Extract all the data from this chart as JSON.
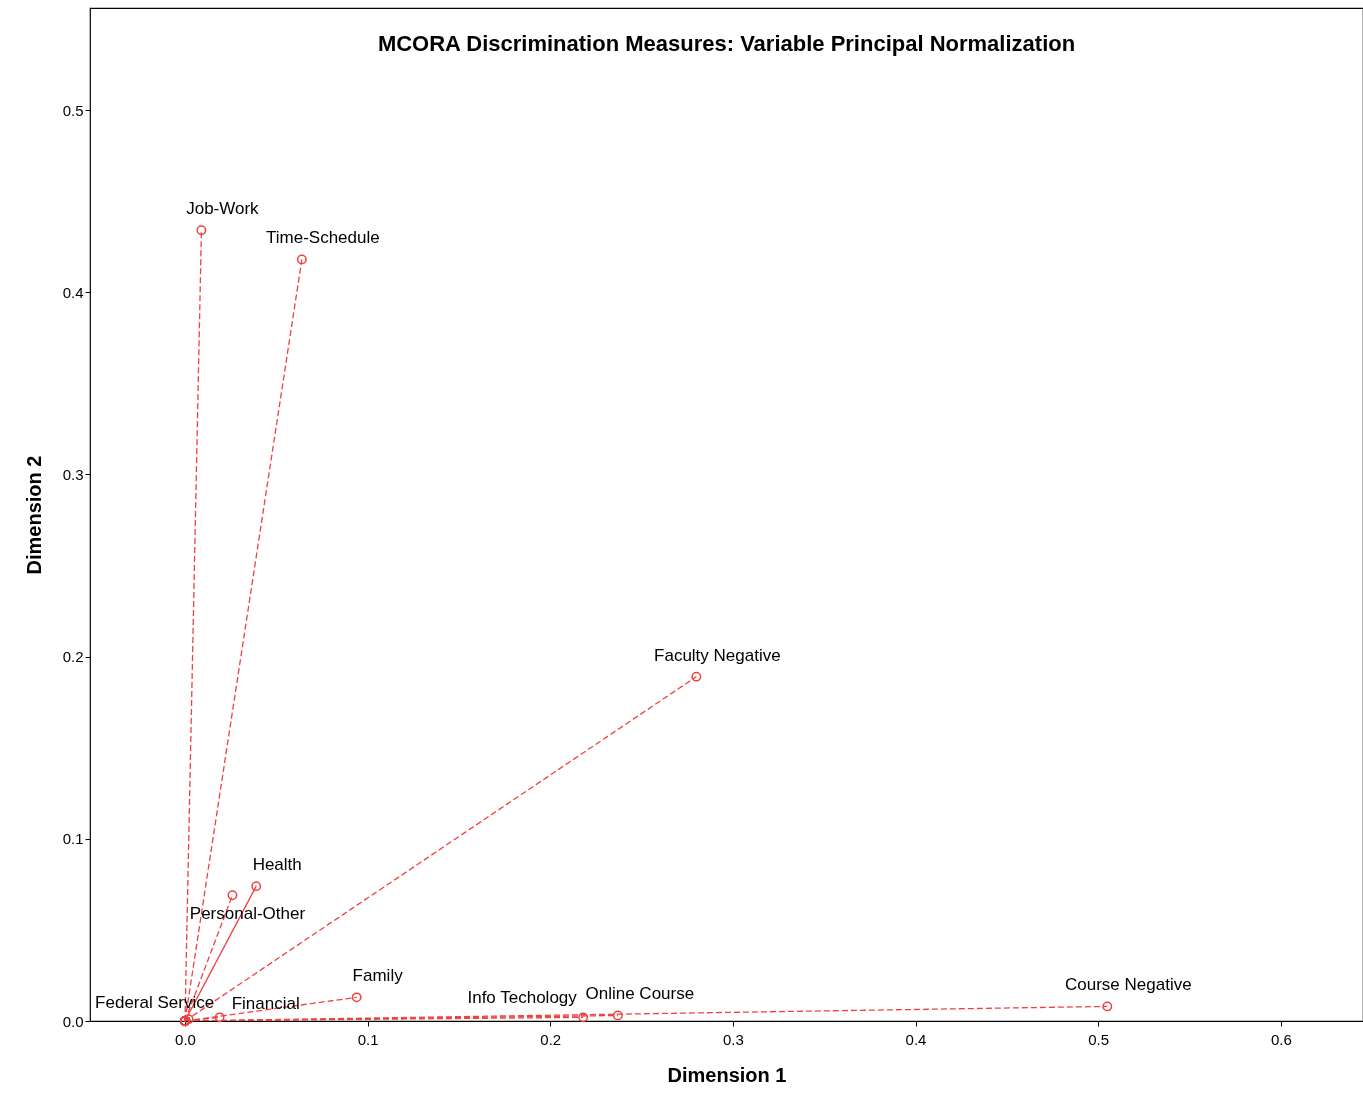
{
  "chart_data": {
    "type": "line",
    "title": "MCORA Discrimination Measures: Variable Principal Normalization",
    "xlabel": "Dimension 1",
    "ylabel": "Dimension 2",
    "xlim": [
      -0.052,
      0.645
    ],
    "ylim": [
      0,
      0.556
    ],
    "xticks": [
      {
        "value": 0,
        "label": "0.0"
      },
      {
        "value": 0.1,
        "label": "0.1"
      },
      {
        "value": 0.2,
        "label": "0.2"
      },
      {
        "value": 0.3,
        "label": "0.3"
      },
      {
        "value": 0.4,
        "label": "0.4"
      },
      {
        "value": 0.5,
        "label": "0.5"
      },
      {
        "value": 0.6,
        "label": "0.6"
      }
    ],
    "yticks": [
      {
        "value": 0,
        "label": "0.0"
      },
      {
        "value": 0.1,
        "label": "0.1"
      },
      {
        "value": 0.2,
        "label": "0.2"
      },
      {
        "value": 0.3,
        "label": "0.3"
      },
      {
        "value": 0.4,
        "label": "0.4"
      },
      {
        "value": 0.5,
        "label": "0.5"
      }
    ],
    "grid": false,
    "marker": "circle",
    "line_style": "dashed",
    "series": [
      {
        "name": "Job-Work",
        "color": "#f04040",
        "x": [
          0,
          0.009
        ],
        "values": [
          0,
          0.434
        ]
      },
      {
        "name": "Time-Schedule",
        "color": "#f04040",
        "x": [
          0,
          0.064
        ],
        "values": [
          0,
          0.418
        ]
      },
      {
        "name": "Faculty Negative",
        "color": "#f04040",
        "x": [
          0,
          0.28
        ],
        "values": [
          0,
          0.189
        ]
      },
      {
        "name": "Health",
        "color": "#f04040",
        "x": [
          0,
          0.039
        ],
        "values": [
          0,
          0.074
        ],
        "line_style": "solid"
      },
      {
        "name": "Personal-Other",
        "color": "#f04040",
        "x": [
          0,
          0.026
        ],
        "values": [
          0,
          0.069
        ]
      },
      {
        "name": "Family",
        "color": "#f04040",
        "x": [
          0,
          0.094
        ],
        "values": [
          0,
          0.013
        ]
      },
      {
        "name": "Federal Service",
        "color": "#f04040",
        "type": "scatter",
        "x": [
          0.002
        ],
        "values": [
          0.001
        ]
      },
      {
        "name": "Financial",
        "color": "#f04040",
        "x": [
          0,
          0.019
        ],
        "values": [
          0,
          0.002
        ]
      },
      {
        "name": "Info Techology",
        "color": "#f04040",
        "x": [
          0,
          0.218
        ],
        "values": [
          0,
          0.002
        ]
      },
      {
        "name": "Online Course",
        "color": "#f04040",
        "x": [
          0,
          0.237
        ],
        "values": [
          0,
          0.003
        ]
      },
      {
        "name": "Course Negative",
        "color": "#f04040",
        "x": [
          0,
          0.505
        ],
        "values": [
          0,
          0.008
        ]
      }
    ]
  }
}
